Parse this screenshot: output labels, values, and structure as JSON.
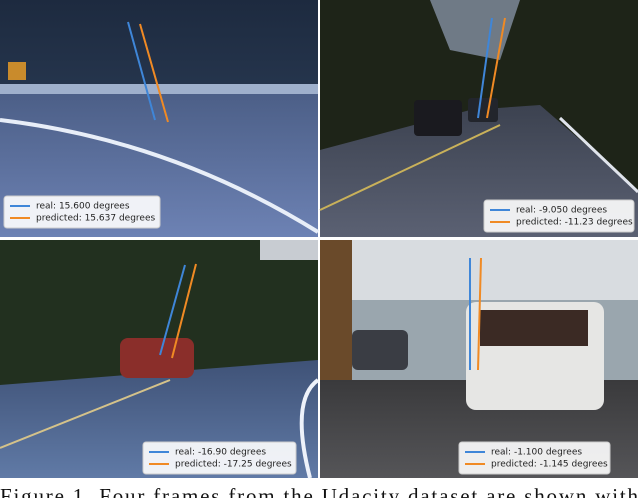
{
  "panels": [
    {
      "real": "real: 15.600 degrees",
      "predicted": "predicted: 15.637 degrees"
    },
    {
      "real": "real: -9.050 degrees",
      "predicted": "predicted: -11.23 degrees"
    },
    {
      "real": "real: -16.90 degrees",
      "predicted": "predicted: -17.25 degrees"
    },
    {
      "real": "real: -1.100 degrees",
      "predicted": "predicted: -1.145 degrees"
    }
  ],
  "caption": "Figure 1. Four frames from the Udacity dataset are shown with"
}
